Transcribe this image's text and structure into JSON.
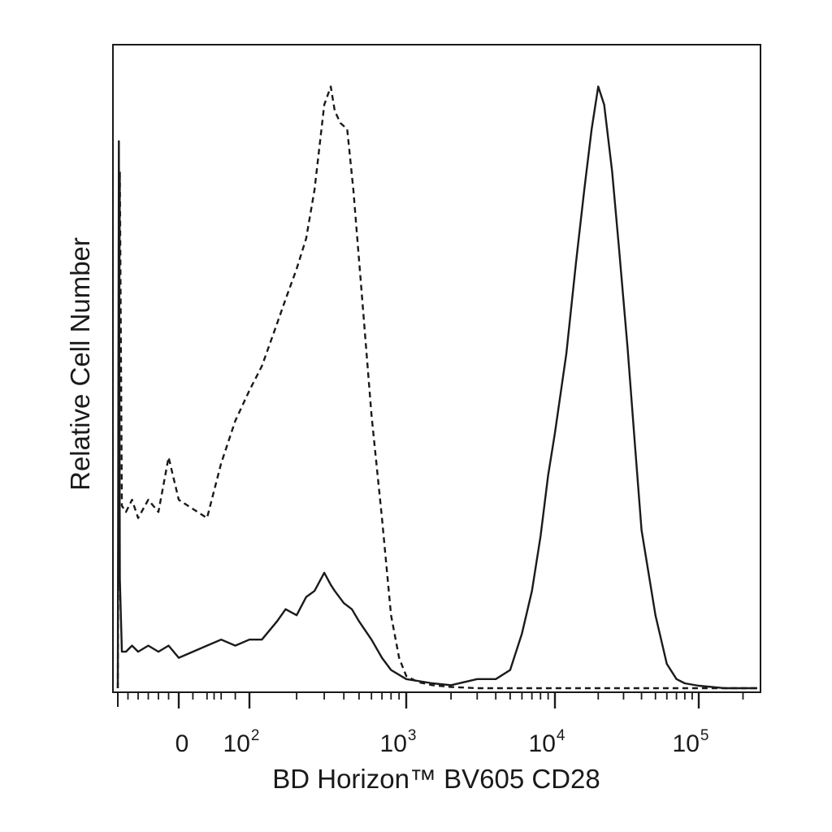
{
  "chart_data": {
    "type": "line",
    "title": "",
    "xlabel": "BD Horizon™ BV605 CD28",
    "ylabel": "Relative Cell Number",
    "x_scale": "biexponential",
    "xlim": [
      -300,
      250000
    ],
    "ylim": [
      0,
      100
    ],
    "y_ticks_labeled": false,
    "grid": false,
    "legend": "none",
    "x_ticks": [
      {
        "value": 0,
        "base": "0",
        "exp": ""
      },
      {
        "value": 100,
        "base": "10",
        "exp": "2"
      },
      {
        "value": 1000,
        "base": "10",
        "exp": "3"
      },
      {
        "value": 10000,
        "base": "10",
        "exp": "4"
      },
      {
        "value": 100000,
        "base": "10",
        "exp": "5"
      }
    ],
    "series": [
      {
        "style": "dashed",
        "color": "#1a1a1a",
        "x": [
          -300,
          -290,
          -280,
          -260,
          -230,
          -200,
          -150,
          -100,
          -50,
          0,
          40,
          60,
          80,
          100,
          120,
          150,
          170,
          200,
          230,
          260,
          300,
          330,
          350,
          380,
          420,
          460,
          520,
          600,
          700,
          800,
          900,
          1000,
          1200,
          1500,
          2000,
          3000,
          5000,
          10000,
          20000,
          50000,
          100000,
          250000
        ],
        "y": [
          0,
          85,
          30,
          29,
          31,
          28,
          31,
          29,
          38,
          31,
          28,
          37,
          44,
          49,
          53,
          60,
          64,
          69,
          74,
          82,
          96,
          99,
          95,
          93,
          92,
          82,
          65,
          45,
          28,
          12,
          5,
          2,
          1,
          0.5,
          0.2,
          0,
          0,
          0,
          0,
          0,
          0,
          0
        ]
      },
      {
        "style": "solid",
        "color": "#1a1a1a",
        "x": [
          -300,
          -295,
          -290,
          -280,
          -260,
          -230,
          -200,
          -150,
          -100,
          -50,
          0,
          40,
          60,
          80,
          100,
          120,
          150,
          170,
          200,
          230,
          260,
          300,
          330,
          350,
          400,
          450,
          500,
          600,
          700,
          800,
          1000,
          1500,
          2000,
          3000,
          4000,
          5000,
          6000,
          7000,
          8000,
          9000,
          10000,
          12000,
          14000,
          16000,
          18000,
          20000,
          22000,
          25000,
          28000,
          32000,
          36000,
          40000,
          50000,
          60000,
          70000,
          80000,
          100000,
          150000,
          250000
        ],
        "y": [
          0,
          90,
          18,
          6,
          6,
          7,
          6,
          7,
          6,
          7,
          5,
          7,
          8,
          7,
          8,
          8,
          11,
          13,
          12,
          15,
          16,
          19,
          17,
          16,
          14,
          13,
          11,
          8,
          5,
          3,
          1.5,
          0.8,
          0.5,
          1.5,
          1.5,
          3,
          9,
          16,
          25,
          35,
          42,
          55,
          70,
          82,
          92,
          99,
          96,
          85,
          72,
          56,
          40,
          26,
          12,
          4,
          1.5,
          0.8,
          0.4,
          0,
          0
        ]
      }
    ]
  }
}
